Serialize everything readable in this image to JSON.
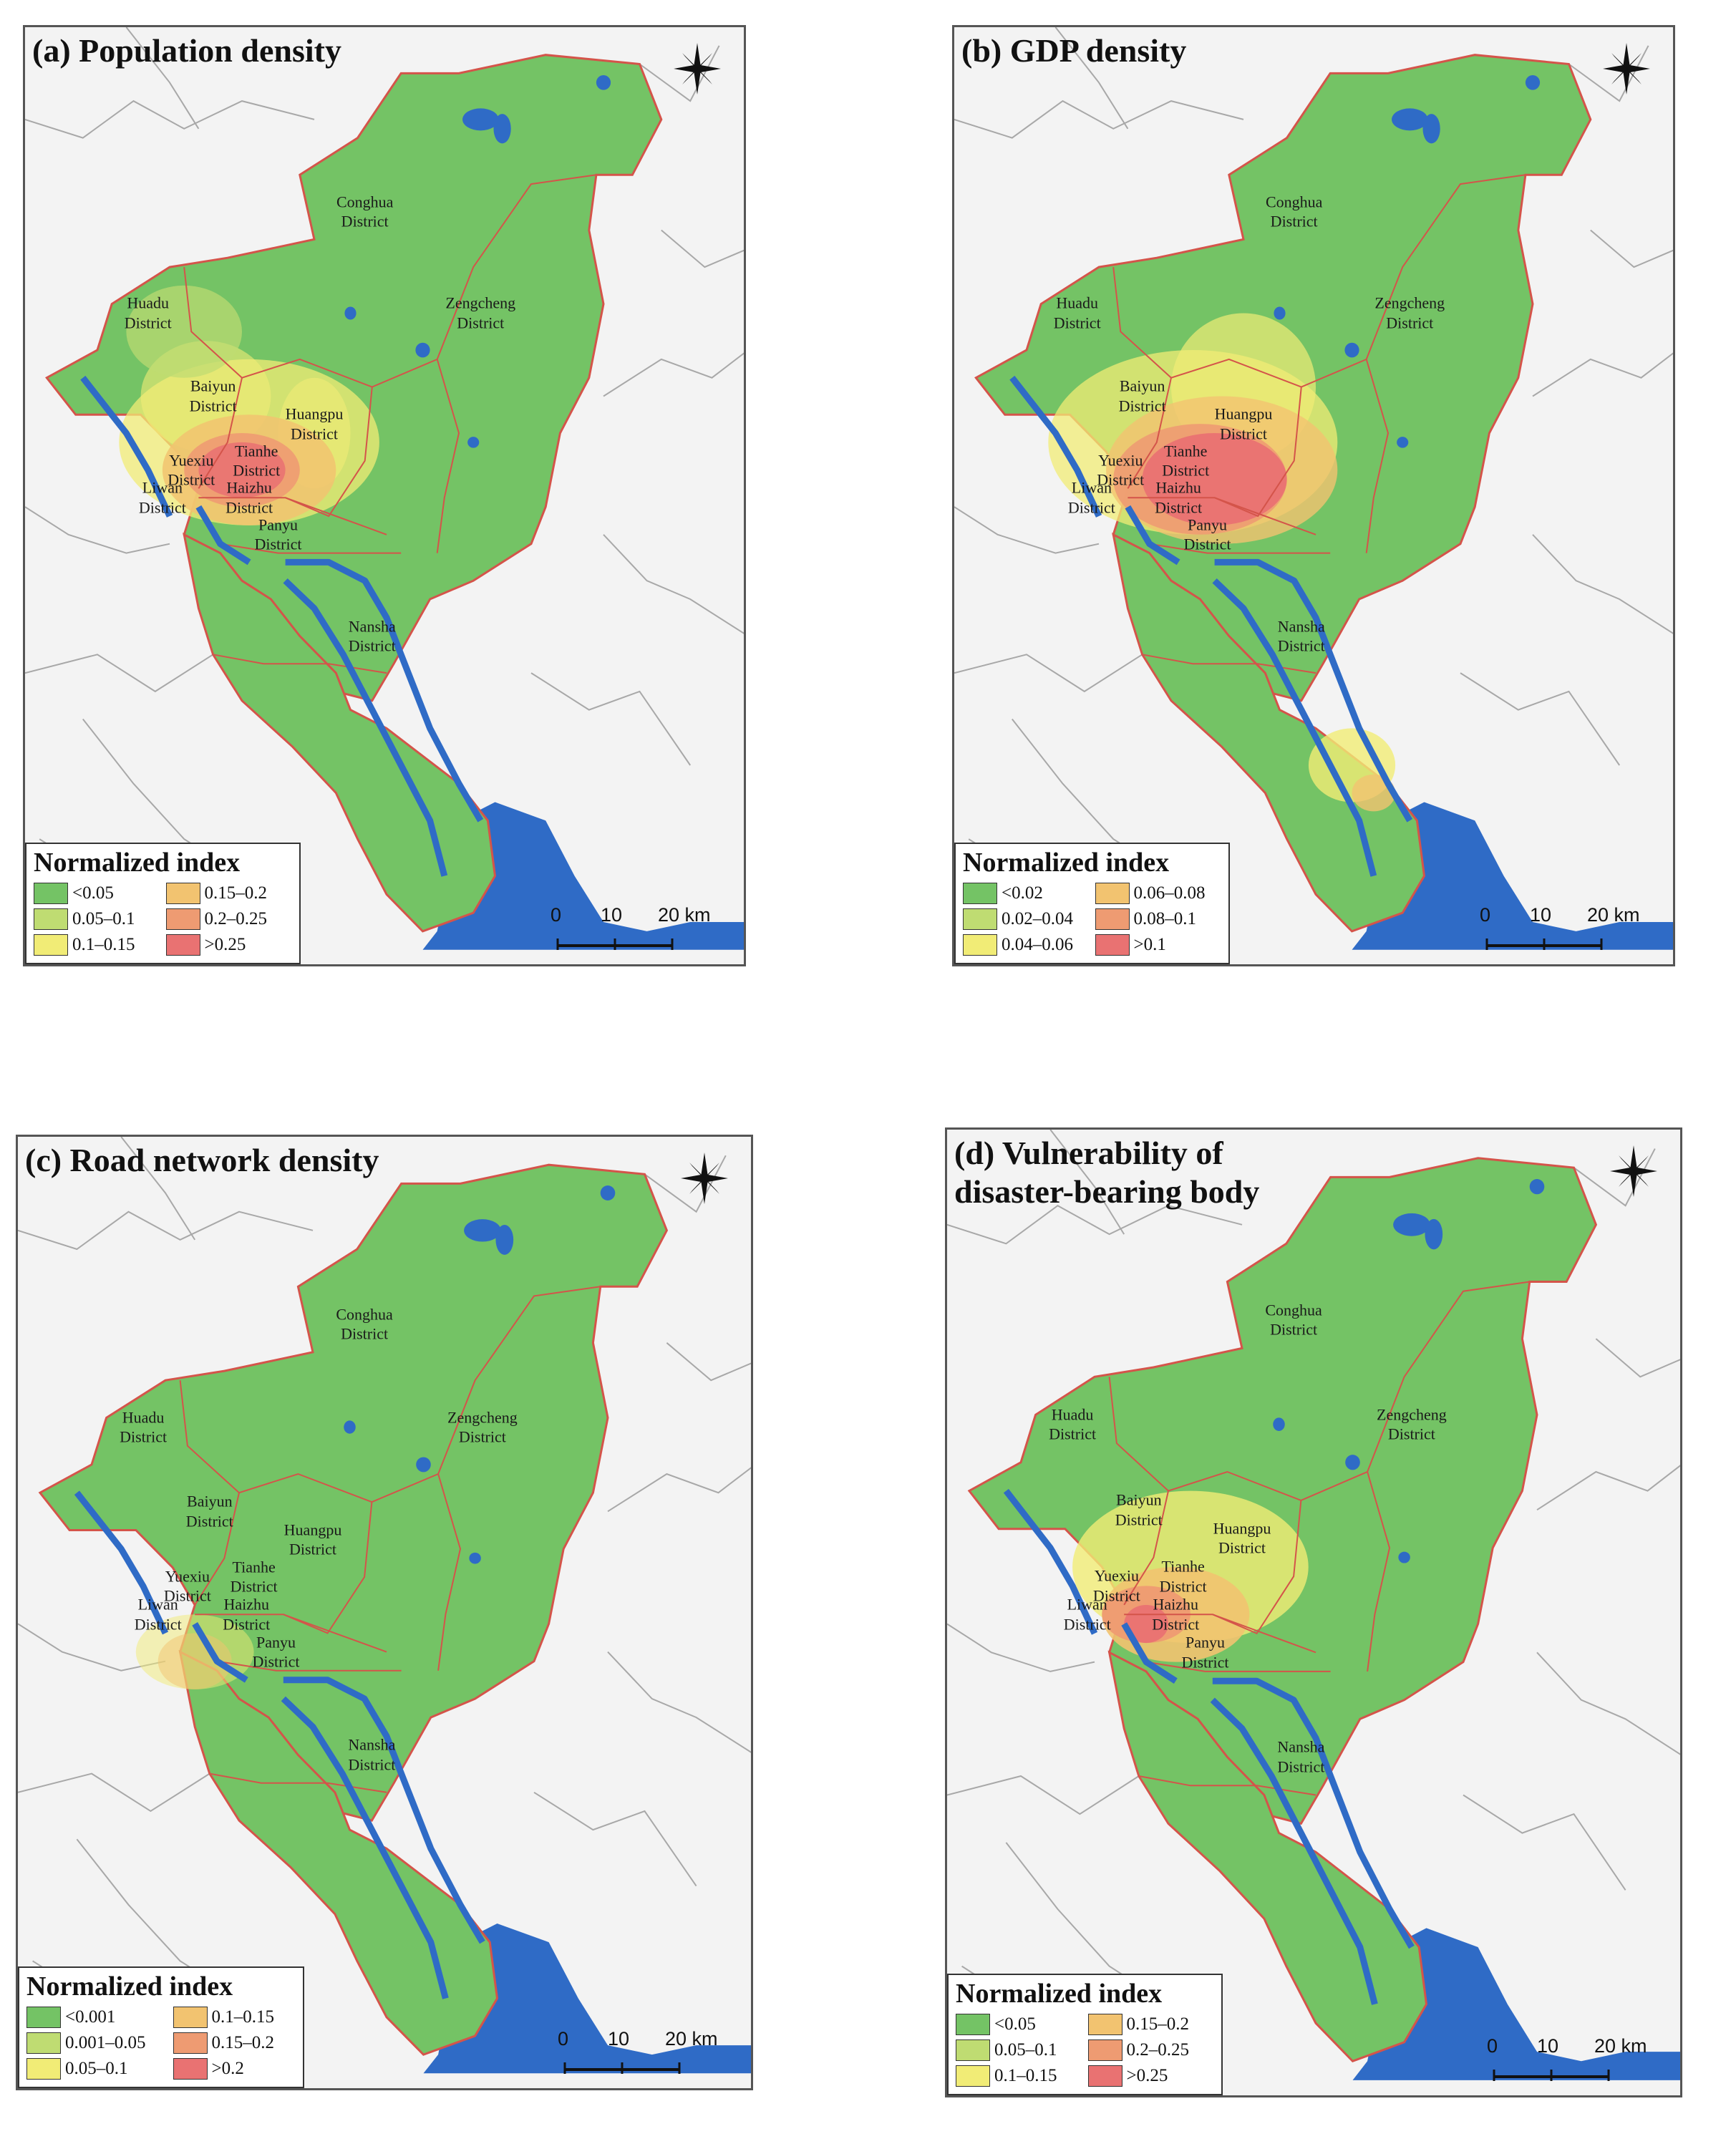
{
  "colors": {
    "c1": "#74c365",
    "c2": "#bfdc72",
    "c3": "#f1ec76",
    "c4": "#f2c370",
    "c5": "#ee9b72",
    "c6": "#e97272",
    "sea": "#2f6bc6",
    "river": "#2f6bc6",
    "land_outside": "#f3f3f3",
    "border_inside": "#d4544a"
  },
  "north_icon": "north-arrow-compass-icon",
  "panels": [
    {
      "title": "(a) Population density",
      "legend_title": "Normalized index",
      "legend": [
        "<0.05",
        "0.15–0.2",
        "0.05–0.1",
        "0.2–0.25",
        "0.1–0.15",
        ">0.25"
      ],
      "scale": [
        "0",
        "10",
        "20 km"
      ]
    },
    {
      "title": "(b) GDP density",
      "legend_title": "Normalized index",
      "legend": [
        "<0.02",
        "0.06–0.08",
        "0.02–0.04",
        "0.08–0.1",
        "0.04–0.06",
        ">0.1"
      ],
      "scale": [
        "0",
        "10",
        "20 km"
      ]
    },
    {
      "title": "(c) Road network density",
      "legend_title": "Normalized index",
      "legend": [
        "<0.001",
        "0.1–0.15",
        "0.001–0.05",
        "0.15–0.2",
        "0.05–0.1",
        ">0.2"
      ],
      "scale": [
        "0",
        "10",
        "20 km"
      ]
    },
    {
      "title": "(d) Vulnerability of\ndisaster-bearing body",
      "legend_title": "Normalized index",
      "legend": [
        "<0.05",
        "0.15–0.2",
        "0.05–0.1",
        "0.2–0.25",
        "0.1–0.15",
        ">0.25"
      ],
      "scale": [
        "0",
        "10",
        "20 km"
      ]
    }
  ],
  "districts": [
    {
      "name": "Conghua\nDistrict"
    },
    {
      "name": "Zengcheng\nDistrict"
    },
    {
      "name": "Huadu\nDistrict"
    },
    {
      "name": "Baiyun\nDistrict"
    },
    {
      "name": "Huangpu\nDistrict"
    },
    {
      "name": "Tianhe\nDistrict"
    },
    {
      "name": "Yuexiu\nDistrict"
    },
    {
      "name": "Liwan\nDistrict"
    },
    {
      "name": "Haizhu\nDistrict"
    },
    {
      "name": "Panyu\nDistrict"
    },
    {
      "name": "Nansha\nDistrict"
    }
  ]
}
